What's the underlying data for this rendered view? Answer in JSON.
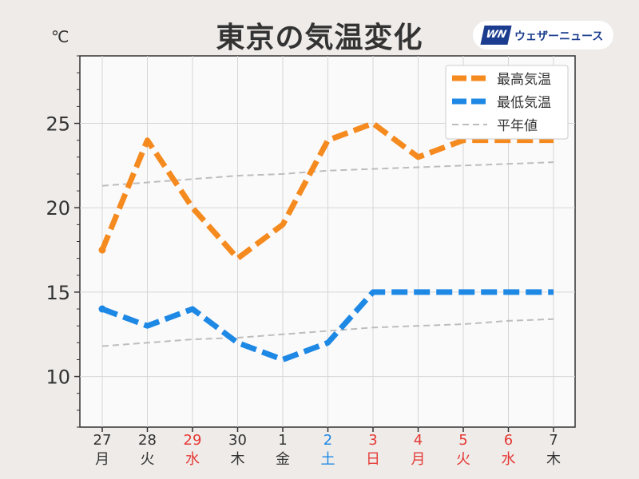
{
  "header": {
    "title": "東京の気温変化",
    "unit": "℃",
    "brand_mark": "WN",
    "brand_name": "ウェザーニュース"
  },
  "colors": {
    "high": "#f58a1f",
    "low": "#1e88e5",
    "normal": "#bdbdbd",
    "weekday": "#333333",
    "saturday": "#1e88e5",
    "holiday": "#e53935"
  },
  "chart_data": {
    "type": "line",
    "title": "東京の気温変化",
    "ylabel": "℃",
    "ylim": [
      7,
      29
    ],
    "yticks": [
      10,
      15,
      20,
      25
    ],
    "grid": true,
    "legend_position": "top-right",
    "categories": [
      {
        "day": "27",
        "weekday": "月",
        "color": "weekday"
      },
      {
        "day": "28",
        "weekday": "火",
        "color": "weekday"
      },
      {
        "day": "29",
        "weekday": "水",
        "color": "holiday"
      },
      {
        "day": "30",
        "weekday": "木",
        "color": "weekday"
      },
      {
        "day": "1",
        "weekday": "金",
        "color": "weekday"
      },
      {
        "day": "2",
        "weekday": "土",
        "color": "saturday"
      },
      {
        "day": "3",
        "weekday": "日",
        "color": "holiday"
      },
      {
        "day": "4",
        "weekday": "月",
        "color": "holiday"
      },
      {
        "day": "5",
        "weekday": "火",
        "color": "holiday"
      },
      {
        "day": "6",
        "weekday": "水",
        "color": "holiday"
      },
      {
        "day": "7",
        "weekday": "木",
        "color": "weekday"
      }
    ],
    "series": [
      {
        "name": "最高気温",
        "color": "high",
        "style": "dashed-thick",
        "values": [
          17.5,
          24,
          20,
          17,
          19,
          24,
          25,
          23,
          24,
          24,
          24
        ]
      },
      {
        "name": "最低気温",
        "color": "low",
        "style": "dashed-thick",
        "values": [
          14,
          13,
          14,
          12,
          11,
          12,
          15,
          15,
          15,
          15,
          15
        ]
      },
      {
        "name": "平年値",
        "color": "normal",
        "style": "dashed-thin",
        "values": [
          21.3,
          21.5,
          21.7,
          21.9,
          22.0,
          22.2,
          22.3,
          22.4,
          22.5,
          22.6,
          22.7
        ]
      },
      {
        "name": "",
        "color": "normal",
        "style": "dashed-thin",
        "values": [
          11.8,
          12.0,
          12.2,
          12.3,
          12.5,
          12.7,
          12.9,
          13.0,
          13.1,
          13.3,
          13.4
        ]
      }
    ]
  }
}
